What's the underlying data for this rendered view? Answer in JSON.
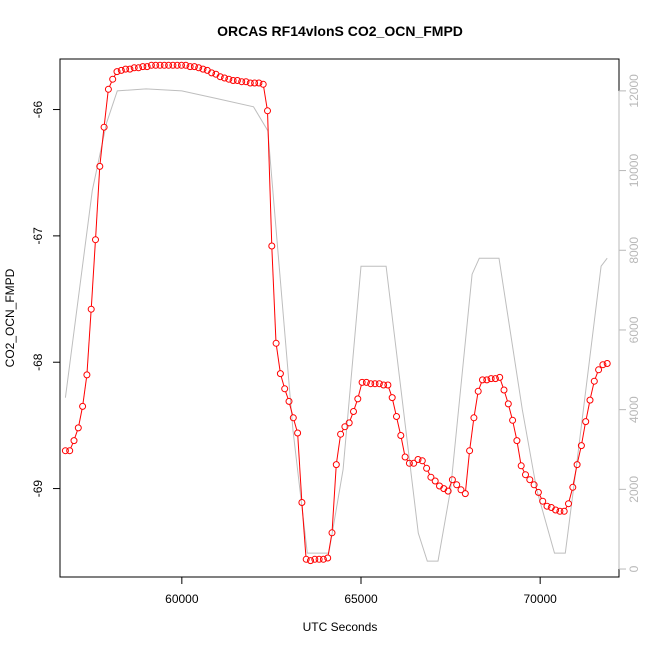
{
  "chart_data": {
    "type": "line",
    "title": "ORCAS RF14vlonS CO2_OCN_FMPD",
    "xlabel": "UTC Seconds",
    "ylabel": "CO2_OCN_FMPD",
    "xlim": [
      56600,
      72200
    ],
    "ylim": [
      -69.7,
      -65.6
    ],
    "y2lim": [
      -200,
      12800
    ],
    "x_ticks": [
      60000,
      65000,
      70000
    ],
    "y_ticks": [
      -69,
      -68,
      -67,
      -66
    ],
    "y2_ticks": [
      0,
      2000,
      4000,
      6000,
      8000,
      10000,
      12000
    ],
    "grid": false,
    "legend": "none",
    "colors": {
      "series": "#ff0000",
      "secondary": "#bebebe",
      "axis": "#000000",
      "secondary_axis": "#b8b8b8"
    },
    "series": [
      {
        "values": [
          [
            56750,
            -68.7
          ],
          [
            56870,
            -68.7
          ],
          [
            56990,
            -68.62
          ],
          [
            57110,
            -68.52
          ],
          [
            57230,
            -68.35
          ],
          [
            57350,
            -68.1
          ],
          [
            57470,
            -67.58
          ],
          [
            57590,
            -67.03
          ],
          [
            57710,
            -66.45
          ],
          [
            57830,
            -66.14
          ],
          [
            57950,
            -65.84
          ],
          [
            58070,
            -65.76
          ],
          [
            58190,
            -65.7
          ],
          [
            58310,
            -65.69
          ],
          [
            58430,
            -65.68
          ],
          [
            58550,
            -65.68
          ],
          [
            58670,
            -65.67
          ],
          [
            58790,
            -65.67
          ],
          [
            58910,
            -65.66
          ],
          [
            59030,
            -65.66
          ],
          [
            59150,
            -65.65
          ],
          [
            59270,
            -65.65
          ],
          [
            59390,
            -65.65
          ],
          [
            59510,
            -65.65
          ],
          [
            59630,
            -65.65
          ],
          [
            59750,
            -65.65
          ],
          [
            59870,
            -65.65
          ],
          [
            59990,
            -65.65
          ],
          [
            60110,
            -65.65
          ],
          [
            60230,
            -65.66
          ],
          [
            60350,
            -65.66
          ],
          [
            60470,
            -65.67
          ],
          [
            60590,
            -65.68
          ],
          [
            60710,
            -65.69
          ],
          [
            60830,
            -65.71
          ],
          [
            60950,
            -65.72
          ],
          [
            61070,
            -65.74
          ],
          [
            61190,
            -65.75
          ],
          [
            61310,
            -65.76
          ],
          [
            61430,
            -65.77
          ],
          [
            61550,
            -65.77
          ],
          [
            61670,
            -65.78
          ],
          [
            61790,
            -65.78
          ],
          [
            61910,
            -65.79
          ],
          [
            62030,
            -65.79
          ],
          [
            62150,
            -65.79
          ],
          [
            62270,
            -65.8
          ],
          [
            62390,
            -66.01
          ],
          [
            62510,
            -67.08
          ],
          [
            62630,
            -67.85
          ],
          [
            62750,
            -68.09
          ],
          [
            62870,
            -68.21
          ],
          [
            62990,
            -68.31
          ],
          [
            63110,
            -68.44
          ],
          [
            63230,
            -68.56
          ],
          [
            63350,
            -69.11
          ],
          [
            63470,
            -69.56
          ],
          [
            63590,
            -69.57
          ],
          [
            63710,
            -69.56
          ],
          [
            63830,
            -69.56
          ],
          [
            63950,
            -69.56
          ],
          [
            64070,
            -69.55
          ],
          [
            64190,
            -69.35
          ],
          [
            64310,
            -68.81
          ],
          [
            64430,
            -68.57
          ],
          [
            64550,
            -68.51
          ],
          [
            64670,
            -68.48
          ],
          [
            64790,
            -68.39
          ],
          [
            64910,
            -68.29
          ],
          [
            65030,
            -68.16
          ],
          [
            65150,
            -68.16
          ],
          [
            65270,
            -68.17
          ],
          [
            65390,
            -68.17
          ],
          [
            65510,
            -68.17
          ],
          [
            65630,
            -68.18
          ],
          [
            65750,
            -68.18
          ],
          [
            65870,
            -68.28
          ],
          [
            65990,
            -68.43
          ],
          [
            66110,
            -68.58
          ],
          [
            66230,
            -68.75
          ],
          [
            66350,
            -68.8
          ],
          [
            66470,
            -68.8
          ],
          [
            66590,
            -68.77
          ],
          [
            66710,
            -68.78
          ],
          [
            66830,
            -68.84
          ],
          [
            66950,
            -68.91
          ],
          [
            67070,
            -68.94
          ],
          [
            67190,
            -68.98
          ],
          [
            67310,
            -69.0
          ],
          [
            67430,
            -69.02
          ],
          [
            67550,
            -68.93
          ],
          [
            67670,
            -68.97
          ],
          [
            67790,
            -69.01
          ],
          [
            67910,
            -69.04
          ],
          [
            68030,
            -68.7
          ],
          [
            68150,
            -68.44
          ],
          [
            68270,
            -68.23
          ],
          [
            68390,
            -68.14
          ],
          [
            68510,
            -68.14
          ],
          [
            68630,
            -68.13
          ],
          [
            68750,
            -68.13
          ],
          [
            68870,
            -68.12
          ],
          [
            68990,
            -68.22
          ],
          [
            69110,
            -68.33
          ],
          [
            69230,
            -68.46
          ],
          [
            69350,
            -68.62
          ],
          [
            69470,
            -68.82
          ],
          [
            69590,
            -68.89
          ],
          [
            69710,
            -68.93
          ],
          [
            69830,
            -68.97
          ],
          [
            69950,
            -69.03
          ],
          [
            70070,
            -69.1
          ],
          [
            70190,
            -69.14
          ],
          [
            70310,
            -69.15
          ],
          [
            70430,
            -69.17
          ],
          [
            70550,
            -69.18
          ],
          [
            70670,
            -69.18
          ],
          [
            70790,
            -69.12
          ],
          [
            70910,
            -68.99
          ],
          [
            71030,
            -68.81
          ],
          [
            71150,
            -68.66
          ],
          [
            71270,
            -68.47
          ],
          [
            71390,
            -68.3
          ],
          [
            71510,
            -68.15
          ],
          [
            71630,
            -68.06
          ],
          [
            71750,
            -68.02
          ],
          [
            71870,
            -68.01
          ]
        ]
      },
      {
        "axis": "right",
        "values": [
          [
            56750,
            4300
          ],
          [
            57500,
            9500
          ],
          [
            57900,
            11200
          ],
          [
            58200,
            12000
          ],
          [
            59000,
            12050
          ],
          [
            60000,
            12000
          ],
          [
            61000,
            11800
          ],
          [
            62000,
            11600
          ],
          [
            62400,
            11000
          ],
          [
            63100,
            3500
          ],
          [
            63500,
            400
          ],
          [
            64100,
            400
          ],
          [
            64500,
            2500
          ],
          [
            65000,
            7600
          ],
          [
            65700,
            7600
          ],
          [
            66600,
            900
          ],
          [
            66850,
            200
          ],
          [
            67150,
            200
          ],
          [
            67500,
            2000
          ],
          [
            68100,
            7400
          ],
          [
            68300,
            7800
          ],
          [
            68850,
            7800
          ],
          [
            69500,
            4000
          ],
          [
            69900,
            2000
          ],
          [
            70400,
            400
          ],
          [
            70700,
            400
          ],
          [
            71000,
            2500
          ],
          [
            71700,
            7600
          ],
          [
            71870,
            7800
          ]
        ]
      }
    ]
  }
}
